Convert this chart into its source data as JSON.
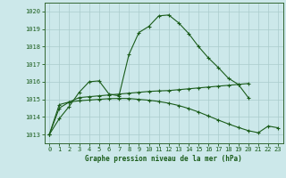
{
  "title": "Graphe pression niveau de la mer (hPa)",
  "bg_color": "#cce8ea",
  "grid_color": "#aacccc",
  "line_color": "#1a5c1a",
  "ylim": [
    1012.5,
    1020.5
  ],
  "xlim": [
    -0.5,
    23.5
  ],
  "y_ticks": [
    1013,
    1014,
    1015,
    1016,
    1017,
    1018,
    1019,
    1020
  ],
  "x_ticks": [
    0,
    1,
    2,
    3,
    4,
    5,
    6,
    7,
    8,
    9,
    10,
    11,
    12,
    13,
    14,
    15,
    16,
    17,
    18,
    19,
    20,
    21,
    22,
    23
  ],
  "series_peak": [
    1013.0,
    1013.9,
    1014.6,
    1015.4,
    1016.0,
    1016.05,
    1015.3,
    1015.2,
    1017.55,
    1018.8,
    1019.15,
    1019.75,
    1019.8,
    1019.35,
    1018.75,
    1018.0,
    1017.35,
    1016.8,
    1016.2,
    1015.85,
    1015.1,
    null,
    null,
    null
  ],
  "series_trend": [
    1013.0,
    1014.5,
    1014.85,
    1015.1,
    1015.15,
    1015.2,
    1015.25,
    1015.3,
    1015.35,
    1015.4,
    1015.45,
    1015.48,
    1015.5,
    1015.55,
    1015.6,
    1015.65,
    1015.7,
    1015.75,
    1015.8,
    1015.85,
    1015.9,
    null,
    null,
    null
  ],
  "series_desc": [
    1013.0,
    1014.7,
    1014.85,
    1014.92,
    1014.96,
    1015.0,
    1015.04,
    1015.05,
    1015.05,
    1015.0,
    1014.95,
    1014.88,
    1014.78,
    1014.65,
    1014.48,
    1014.28,
    1014.05,
    1013.82,
    1013.6,
    1013.4,
    1013.22,
    1013.1,
    1013.48,
    1013.38
  ]
}
